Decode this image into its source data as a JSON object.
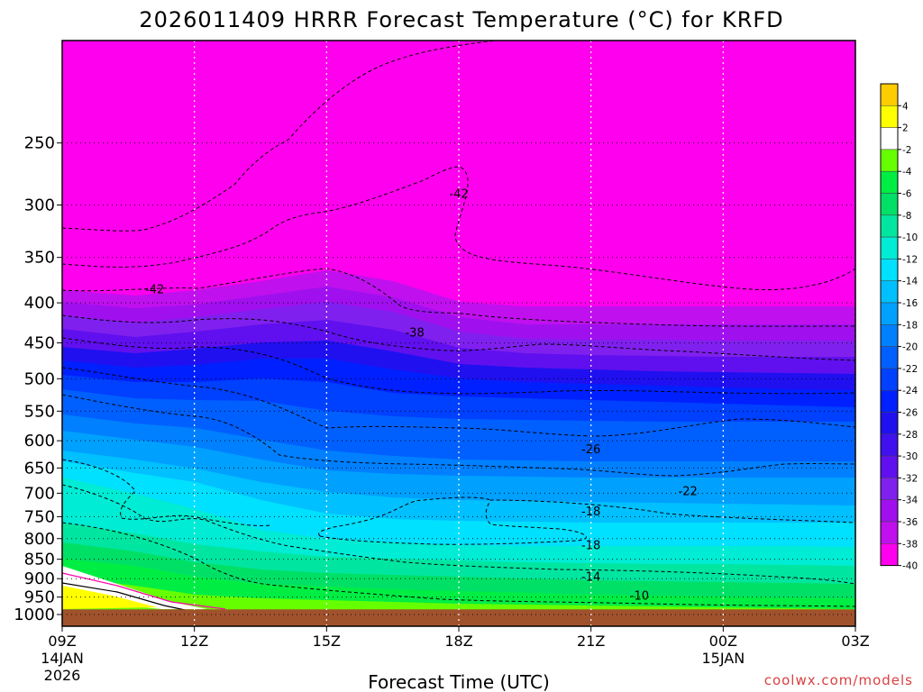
{
  "chart_data": {
    "type": "time-height-contour",
    "title": "2026011409 HRRR Forecast Temperature (°C) for KRFD",
    "xlabel": "Forecast Time (UTC)",
    "ylabel": "",
    "xlim_hours": [
      0,
      18
    ],
    "ylim_hpa": [
      1035,
      185
    ],
    "x_ticks": [
      {
        "h": 0,
        "label": "09Z",
        "sub1": "14JAN",
        "sub2": "2026"
      },
      {
        "h": 3,
        "label": "12Z",
        "sub1": "",
        "sub2": ""
      },
      {
        "h": 6,
        "label": "15Z",
        "sub1": "",
        "sub2": ""
      },
      {
        "h": 9,
        "label": "18Z",
        "sub1": "",
        "sub2": ""
      },
      {
        "h": 12,
        "label": "21Z",
        "sub1": "",
        "sub2": ""
      },
      {
        "h": 15,
        "label": "00Z",
        "sub1": "15JAN",
        "sub2": ""
      },
      {
        "h": 18,
        "label": "03Z",
        "sub1": "",
        "sub2": ""
      }
    ],
    "y_ticks": [
      250,
      300,
      350,
      400,
      450,
      500,
      550,
      600,
      650,
      700,
      750,
      800,
      850,
      900,
      950,
      1000
    ],
    "colorbar": {
      "levels": [
        4,
        2,
        -2,
        -4,
        -6,
        -8,
        -10,
        -12,
        -14,
        -16,
        -18,
        -20,
        -22,
        -24,
        -26,
        -28,
        -30,
        -32,
        -34,
        -36,
        -38,
        -40
      ],
      "colors": [
        "#ffcc00",
        "#ffff00",
        "#ffffff",
        "#66ff00",
        "#00ee44",
        "#00e066",
        "#00e6a0",
        "#00ecd4",
        "#00e0ff",
        "#00c0ff",
        "#00a0ff",
        "#0080ff",
        "#0060ff",
        "#0040ff",
        "#0020ff",
        "#2010f0",
        "#4010ee",
        "#6010ee",
        "#8020ee",
        "#a010ee",
        "#c010ee",
        "#ff00ee"
      ]
    },
    "contour_labels": [
      {
        "value": "-42",
        "h": 9.0,
        "p": 290
      },
      {
        "value": "-42",
        "h": 2.1,
        "p": 384
      },
      {
        "value": "-38",
        "h": 8.0,
        "p": 436
      },
      {
        "value": "-26",
        "h": 12.0,
        "p": 614
      },
      {
        "value": "-22",
        "h": 14.2,
        "p": 695
      },
      {
        "value": "-18",
        "h": 12.0,
        "p": 737
      },
      {
        "value": "-18",
        "h": 12.0,
        "p": 814
      },
      {
        "value": "-14",
        "h": 12.0,
        "p": 893
      },
      {
        "value": "-10",
        "h": 13.1,
        "p": 945
      }
    ],
    "ground_level_hpa": 985,
    "ground_color": "#a0522d"
  },
  "credit": "coolwx.com/models"
}
